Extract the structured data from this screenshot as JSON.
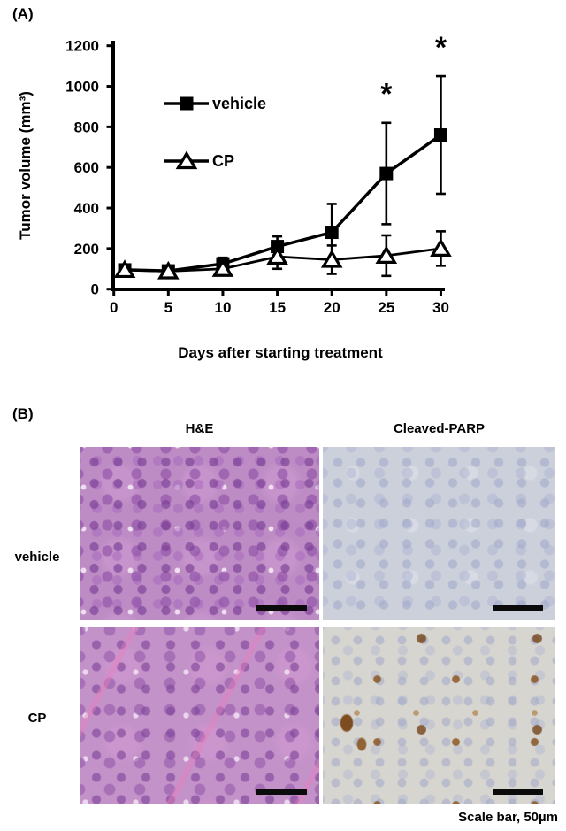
{
  "panel_a": {
    "label": "(A)"
  },
  "chart_data": {
    "type": "line",
    "title": "",
    "xlabel": "Days after starting treatment",
    "ylabel": "Tumor volume (mm³)",
    "xlim": [
      0,
      30
    ],
    "ylim": [
      0,
      1200
    ],
    "xticks": [
      0,
      5,
      10,
      15,
      20,
      25,
      30
    ],
    "yticks": [
      0,
      200,
      400,
      600,
      800,
      1000,
      1200
    ],
    "grid": false,
    "legend_position": "inside upper-left",
    "x": [
      1,
      5,
      10,
      15,
      20,
      25,
      30
    ],
    "series": [
      {
        "name": "vehicle",
        "marker": "filled-square",
        "values": [
          95,
          90,
          125,
          210,
          280,
          570,
          760
        ],
        "errors": [
          22,
          20,
          30,
          50,
          140,
          250,
          290
        ]
      },
      {
        "name": "CP",
        "marker": "open-triangle",
        "values": [
          95,
          88,
          100,
          160,
          145,
          165,
          200
        ],
        "errors": [
          25,
          25,
          20,
          60,
          70,
          100,
          85
        ]
      }
    ],
    "annotations": [
      {
        "text": "*",
        "x": 25,
        "y": 965
      },
      {
        "text": "*",
        "x": 30,
        "y": 1195
      }
    ]
  },
  "panel_b": {
    "label": "(B)",
    "column_headers": [
      "H&E",
      "Cleaved-PARP"
    ],
    "row_labels": [
      "vehicle",
      "CP"
    ],
    "caption": "Scale bar, 50µm"
  }
}
